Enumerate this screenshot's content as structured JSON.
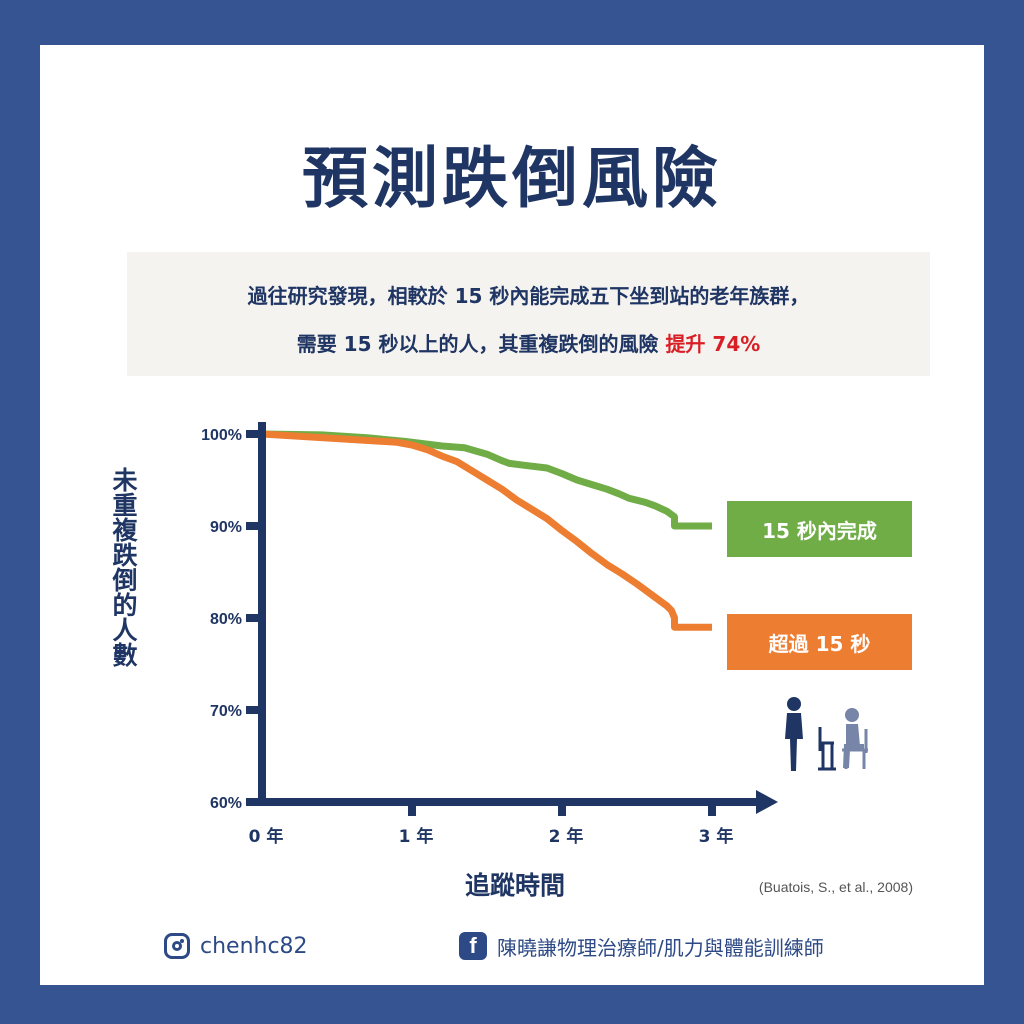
{
  "title": "預測跌倒風險",
  "summary": {
    "line1": "過往研究發現，相較於 15 秒內能完成五下坐到站的老年族群，",
    "line2_prefix": "需要 15 秒以上的人，其重複跌倒的風險 ",
    "line2_highlight": "提升 74%"
  },
  "colors": {
    "background": "#355491",
    "navy": "#1f3563",
    "green": "#70ad47",
    "orange": "#ed7d31",
    "highlight_red": "#d81f26"
  },
  "chart_data": {
    "type": "line",
    "ylabel": "未重複跌倒的人數",
    "xlabel": "追蹤時間",
    "xlim": [
      0,
      3
    ],
    "ylim": [
      60,
      100
    ],
    "xticks": [
      {
        "v": 0,
        "label": "0 年"
      },
      {
        "v": 1,
        "label": "1 年"
      },
      {
        "v": 2,
        "label": "2 年"
      },
      {
        "v": 3,
        "label": "3 年"
      }
    ],
    "yticks": [
      {
        "v": 100,
        "label": "100%"
      },
      {
        "v": 90,
        "label": "90%"
      },
      {
        "v": 80,
        "label": "80%"
      },
      {
        "v": 70,
        "label": "70%"
      },
      {
        "v": 60,
        "label": "60%"
      }
    ],
    "series": [
      {
        "name": "15 秒內完成",
        "color": "#70ad47",
        "x": [
          0,
          0.4,
          0.7,
          0.95,
          1.1,
          1.2,
          1.35,
          1.5,
          1.6,
          1.65,
          1.75,
          1.9,
          2.0,
          2.1,
          2.2,
          2.3,
          2.38,
          2.45,
          2.55,
          2.62,
          2.7,
          2.75,
          2.75,
          3.0
        ],
        "y": [
          100,
          99.9,
          99.6,
          99.2,
          98.9,
          98.7,
          98.5,
          97.8,
          97.1,
          96.8,
          96.6,
          96.3,
          95.7,
          95.0,
          94.5,
          94.0,
          93.5,
          93.0,
          92.6,
          92.2,
          91.6,
          91.0,
          90.0,
          90.0
        ]
      },
      {
        "name": "超過 15 秒",
        "color": "#ed7d31",
        "x": [
          0,
          0.3,
          0.6,
          0.9,
          1.0,
          1.1,
          1.2,
          1.3,
          1.4,
          1.5,
          1.6,
          1.7,
          1.8,
          1.9,
          2.0,
          2.1,
          2.2,
          2.3,
          2.4,
          2.5,
          2.6,
          2.7,
          2.73,
          2.75,
          2.75,
          3.0
        ],
        "y": [
          100,
          99.7,
          99.4,
          99.1,
          98.8,
          98.3,
          97.6,
          97.0,
          96.0,
          95.0,
          94.0,
          92.8,
          91.8,
          90.8,
          89.5,
          88.3,
          87.0,
          85.8,
          84.8,
          83.7,
          82.5,
          81.3,
          80.8,
          80.0,
          79.0,
          79.0
        ]
      }
    ],
    "legend_labels": [
      "15 秒內完成",
      "超過 15 秒"
    ]
  },
  "citation": "(Buatois, S., et al., 2008)",
  "footer": {
    "instagram_handle": "chenhc82",
    "facebook_page": "陳曉謙物理治療師/肌力與體能訓練師"
  }
}
